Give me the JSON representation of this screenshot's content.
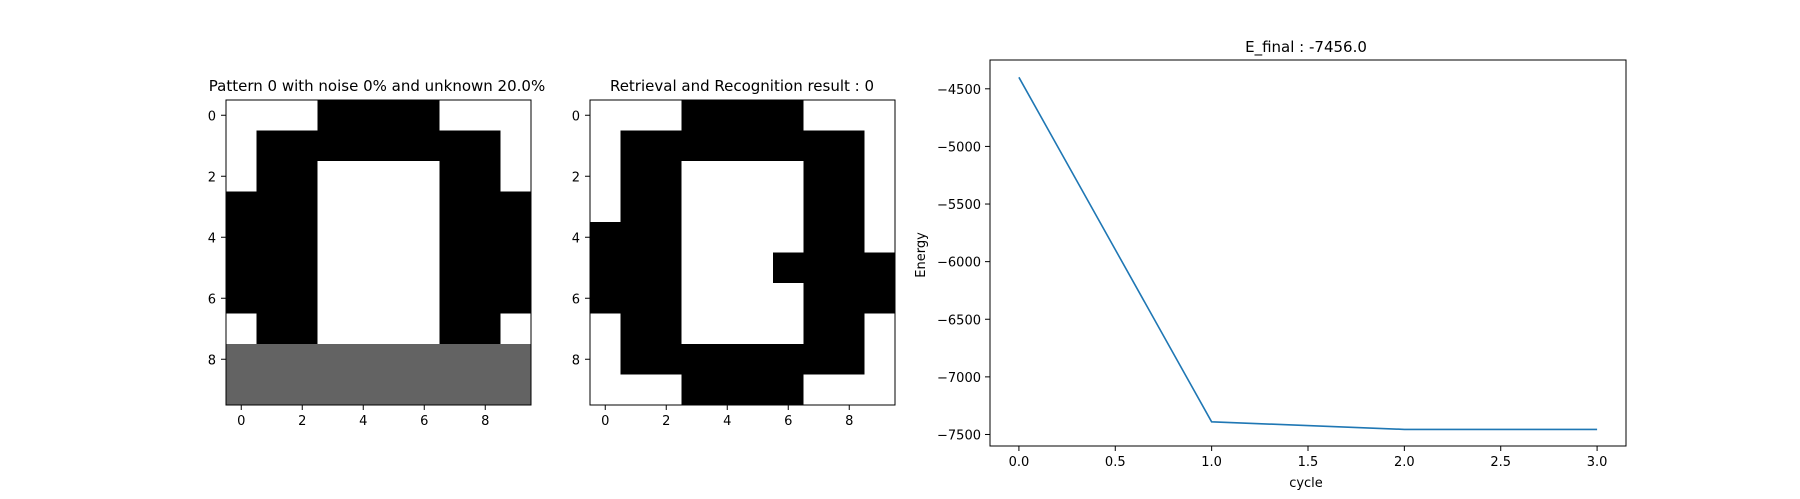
{
  "chart_data": [
    {
      "type": "heatmap",
      "title": "Pattern 0 with noise 0% and unknown 20.0%",
      "colormap": "gray",
      "values_legend": {
        "-1": "black",
        "1": "white",
        "0": "unknown (gray)"
      },
      "x_ticks": [
        "0",
        "2",
        "4",
        "6",
        "8"
      ],
      "y_ticks": [
        "0",
        "2",
        "4",
        "6",
        "8"
      ],
      "grid": false,
      "matrix": [
        [
          1,
          1,
          1,
          -1,
          -1,
          -1,
          -1,
          1,
          1,
          1
        ],
        [
          1,
          -1,
          -1,
          -1,
          -1,
          -1,
          -1,
          -1,
          -1,
          1
        ],
        [
          1,
          -1,
          -1,
          1,
          1,
          1,
          1,
          -1,
          -1,
          1
        ],
        [
          -1,
          -1,
          -1,
          1,
          1,
          1,
          1,
          -1,
          -1,
          -1
        ],
        [
          -1,
          -1,
          -1,
          1,
          1,
          1,
          1,
          -1,
          -1,
          -1
        ],
        [
          -1,
          -1,
          -1,
          1,
          1,
          1,
          1,
          -1,
          -1,
          -1
        ],
        [
          -1,
          -1,
          -1,
          1,
          1,
          1,
          1,
          -1,
          -1,
          -1
        ],
        [
          1,
          -1,
          -1,
          1,
          1,
          1,
          1,
          -1,
          -1,
          1
        ],
        [
          0,
          0,
          0,
          0,
          0,
          0,
          0,
          0,
          0,
          0
        ],
        [
          0,
          0,
          0,
          0,
          0,
          0,
          0,
          0,
          0,
          0
        ]
      ]
    },
    {
      "type": "heatmap",
      "title": "Retrieval and Recognition result : 0",
      "colormap": "gray",
      "values_legend": {
        "-1": "black",
        "1": "white"
      },
      "x_ticks": [
        "0",
        "2",
        "4",
        "6",
        "8"
      ],
      "y_ticks": [
        "0",
        "2",
        "4",
        "6",
        "8"
      ],
      "grid": false,
      "matrix": [
        [
          1,
          1,
          1,
          -1,
          -1,
          -1,
          -1,
          1,
          1,
          1
        ],
        [
          1,
          -1,
          -1,
          -1,
          -1,
          -1,
          -1,
          -1,
          -1,
          1
        ],
        [
          1,
          -1,
          -1,
          1,
          1,
          1,
          1,
          -1,
          -1,
          1
        ],
        [
          1,
          -1,
          -1,
          1,
          1,
          1,
          1,
          -1,
          -1,
          1
        ],
        [
          -1,
          -1,
          -1,
          1,
          1,
          1,
          1,
          -1,
          -1,
          1
        ],
        [
          -1,
          -1,
          -1,
          1,
          1,
          1,
          -1,
          -1,
          -1,
          -1
        ],
        [
          -1,
          -1,
          -1,
          1,
          1,
          1,
          1,
          -1,
          -1,
          -1
        ],
        [
          1,
          -1,
          -1,
          1,
          1,
          1,
          1,
          -1,
          -1,
          1
        ],
        [
          1,
          -1,
          -1,
          -1,
          -1,
          -1,
          -1,
          -1,
          -1,
          1
        ],
        [
          1,
          1,
          1,
          -1,
          -1,
          -1,
          -1,
          1,
          1,
          1
        ]
      ]
    },
    {
      "type": "line",
      "title": "E_final : -7456.0",
      "xlabel": "cycle",
      "ylabel": "Energy",
      "x": [
        0,
        1,
        2,
        3
      ],
      "series": [
        {
          "values": [
            -4400,
            -7390,
            -7456,
            -7456
          ]
        }
      ],
      "xlim": [
        -0.15,
        3.15
      ],
      "ylim": [
        -7600,
        -4250
      ],
      "x_ticks": [
        {
          "value": 0,
          "label": "0.0"
        },
        {
          "value": 0.5,
          "label": "0.5"
        },
        {
          "value": 1,
          "label": "1.0"
        },
        {
          "value": 1.5,
          "label": "1.5"
        },
        {
          "value": 2,
          "label": "2.0"
        },
        {
          "value": 2.5,
          "label": "2.5"
        },
        {
          "value": 3,
          "label": "3.0"
        }
      ],
      "y_ticks": [
        {
          "value": -4500,
          "label": "−4500"
        },
        {
          "value": -5000,
          "label": "−5000"
        },
        {
          "value": -5500,
          "label": "−5500"
        },
        {
          "value": -6000,
          "label": "−6000"
        },
        {
          "value": -6500,
          "label": "−6500"
        },
        {
          "value": -7000,
          "label": "−7000"
        },
        {
          "value": -7500,
          "label": "−7500"
        }
      ],
      "line_color": "#1f77b4",
      "grid": false
    }
  ],
  "colors": {
    "black": "#000000",
    "white": "#ffffff",
    "unknown": "#636363",
    "line": "#1f77b4"
  }
}
